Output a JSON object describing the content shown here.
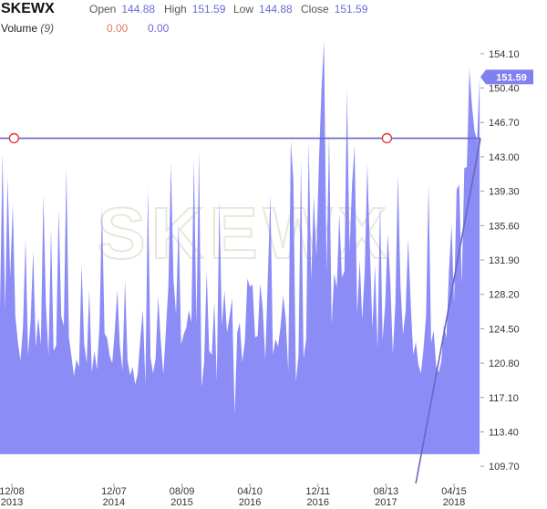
{
  "header": {
    "ticker": "SKEWX",
    "open_label": "Open",
    "open_value": "144.88",
    "high_label": "High",
    "high_value": "151.59",
    "low_label": "Low",
    "low_value": "144.88",
    "close_label": "Close",
    "close_value": "151.59",
    "volume_label": "Volume",
    "volume_period": "(9)",
    "volume_value_1": "0.00",
    "volume_value_2": "0.00"
  },
  "colors": {
    "area_fill": "#8c8cf7",
    "trend_line": "#6767c2",
    "marker": "#e03030",
    "price_tag": "#8080f0",
    "watermark": "#e9e7dd",
    "vol_1": "#e07a6a",
    "vol_2": "#6b6bd6"
  },
  "watermark": "SKEWX",
  "chart_data": {
    "type": "area",
    "title": "SKEWX",
    "ylim": [
      107.85,
      155.95
    ],
    "y_ticks": [
      "154.10",
      "150.40",
      "146.70",
      "143.00",
      "139.30",
      "135.60",
      "131.90",
      "128.20",
      "124.50",
      "120.80",
      "117.10",
      "113.40",
      "109.70"
    ],
    "x_ticks": [
      {
        "month": "12/08",
        "year": "2013",
        "t": 0
      },
      {
        "month": "12/07",
        "year": "2014",
        "t": 12
      },
      {
        "month": "08/09",
        "year": "2015",
        "t": 20
      },
      {
        "month": "04/10",
        "year": "2016",
        "t": 28
      },
      {
        "month": "12/11",
        "year": "2016",
        "t": 36
      },
      {
        "month": "08/13",
        "year": "2017",
        "t": 44
      },
      {
        "month": "04/15",
        "year": "2018",
        "t": 52
      }
    ],
    "x_range": [
      0,
      56.5
    ],
    "baseline": 111.0,
    "last_price": "151.59",
    "horizontal_line": 145.0,
    "markers": [
      [
        0.15,
        145.0
      ],
      [
        44.0,
        145.0
      ]
    ],
    "trend_line": [
      [
        48.9,
        107.85
      ],
      [
        56.5,
        145.0
      ]
    ],
    "series": [
      {
        "x": [
          0,
          0.3,
          0.6,
          0.9,
          1.2,
          1.5,
          1.8,
          2.1,
          2.4,
          2.7,
          3.0,
          3.3,
          3.6,
          3.9,
          4.2,
          4.5,
          4.8,
          5.1,
          5.4,
          5.7,
          6.0,
          6.3,
          6.6,
          6.9,
          7.2,
          7.5,
          7.8,
          8.1,
          8.4,
          8.7,
          9.0,
          9.3,
          9.6,
          9.9,
          10.2,
          10.5,
          10.8,
          11.1,
          11.4,
          11.7,
          12.0,
          12.3,
          12.6,
          12.9,
          13.2,
          13.5,
          13.8,
          14.1,
          14.4,
          14.7,
          15.0,
          15.3,
          15.6,
          15.9,
          16.2,
          16.5,
          16.8,
          17.1,
          17.4,
          17.7,
          18.0,
          18.3,
          18.6,
          18.9,
          19.2,
          19.5,
          19.8,
          20.1,
          20.4,
          20.7,
          21.0,
          21.3,
          21.6,
          21.9,
          22.2,
          22.5,
          22.8,
          23.1,
          23.4,
          23.7,
          24.0,
          24.3,
          24.6,
          24.9,
          25.2,
          25.5,
          25.8,
          26.1,
          26.4,
          26.7,
          27.0,
          27.3,
          27.6,
          27.9,
          28.2,
          28.5,
          28.8,
          29.1,
          29.4,
          29.7,
          30.0,
          30.3,
          30.6,
          30.9,
          31.2,
          31.5,
          31.8,
          32.1,
          32.4,
          32.7,
          33.0,
          33.3,
          33.6,
          33.9,
          34.2,
          34.5,
          34.8,
          35.1,
          35.4,
          35.7,
          36.0,
          36.3,
          36.6,
          36.9,
          37.2,
          37.5,
          37.8,
          38.1,
          38.4,
          38.7,
          39.0,
          39.3,
          39.6,
          39.9,
          40.2,
          40.5,
          40.8,
          41.1,
          41.4,
          41.7,
          42.0,
          42.3,
          42.6,
          42.9,
          43.2,
          43.5,
          43.8,
          44.1,
          44.4,
          44.7,
          45.0,
          45.3,
          45.6,
          45.9,
          46.2,
          46.5,
          46.8,
          47.1,
          47.4,
          47.7,
          48.0,
          48.3,
          48.6,
          48.9,
          49.2,
          49.5,
          49.8,
          50.1,
          50.4,
          50.7,
          51.0,
          51.3,
          51.6,
          51.9,
          52.2,
          52.5,
          52.8,
          53.1,
          53.4,
          53.7,
          54.0,
          54.3,
          54.6,
          54.9,
          55.2,
          55.5,
          55.8,
          56.1,
          56.4
        ],
        "values": [
          126.8,
          143.4,
          126.5,
          140.8,
          130.0,
          137.9,
          125.9,
          123.1,
          121.1,
          124.6,
          134.2,
          121.7,
          125.4,
          132.9,
          122.5,
          125.7,
          122.8,
          138.9,
          127.0,
          121.6,
          135.3,
          122.1,
          122.7,
          137.4,
          125.8,
          124.8,
          141.8,
          123.6,
          121.5,
          119.4,
          121.2,
          120.4,
          131.4,
          122.9,
          120.8,
          128.7,
          119.8,
          122.1,
          120.1,
          124.8,
          137.5,
          124.0,
          123.5,
          121.6,
          120.8,
          124.3,
          128.7,
          122.6,
          120.0,
          129.8,
          121.1,
          119.5,
          120.4,
          118.5,
          119.7,
          123.4,
          126.5,
          118.5,
          139.7,
          121.4,
          119.7,
          121.3,
          128.0,
          123.3,
          119.6,
          124.2,
          129.1,
          142.4,
          129.8,
          126.1,
          136.0,
          122.8,
          123.9,
          124.6,
          126.5,
          125.2,
          142.8,
          124.9,
          143.6,
          118.2,
          120.9,
          130.7,
          122.1,
          121.7,
          127.4,
          118.9,
          138.3,
          124.9,
          128.6,
          124.1,
          125.8,
          127.8,
          115.2,
          124.1,
          125.2,
          120.9,
          123.2,
          129.9,
          129.0,
          129.3,
          123.6,
          123.7,
          129.4,
          126.7,
          121.1,
          130.2,
          139.0,
          121.7,
          123.4,
          122.6,
          124.8,
          128.1,
          125.6,
          119.9,
          144.7,
          140.5,
          118.8,
          121.6,
          142.6,
          121.3,
          123.4,
          144.6,
          129.7,
          138.8,
          132.3,
          142.4,
          150.2,
          155.5,
          130.6,
          145.5,
          125.0,
          130.5,
          128.9,
          136.9,
          130.0,
          130.7,
          150.3,
          132.8,
          140.1,
          144.2,
          126.1,
          131.9,
          125.5,
          130.8,
          142.2,
          133.2,
          124.5,
          131.4,
          122.3,
          138.0,
          123.3,
          127.1,
          134.7,
          129.7,
          121.8,
          127.2,
          141.1,
          129.1,
          123.9,
          126.4,
          134.2,
          127.2,
          121.7,
          123.1,
          120.7,
          119.7,
          122.3,
          125.8,
          140.1,
          123.0,
          124.3,
          120.4,
          119.8,
          121.0,
          124.9,
          123.5,
          130.8,
          135.7,
          127.2,
          139.5,
          140.0,
          129.3,
          141.8,
          141.9,
          152.5,
          148.5,
          145.8,
          144.7,
          151.6
        ]
      }
    ]
  }
}
